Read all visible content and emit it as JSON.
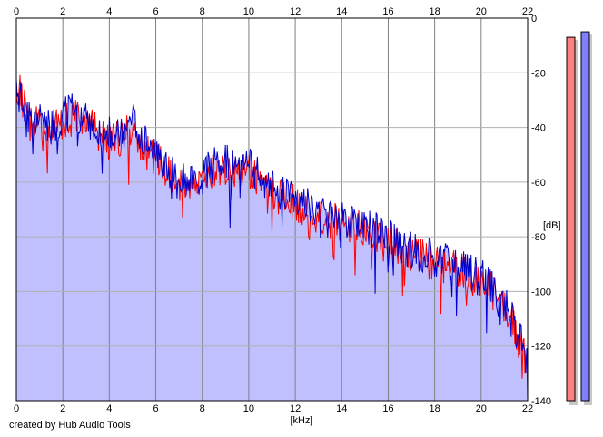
{
  "chart_data": {
    "type": "area",
    "xlabel": "[kHz]",
    "ylabel": "[dB]",
    "xlim": [
      0,
      22
    ],
    "ylim": [
      -140,
      0
    ],
    "x_ticks": [
      0,
      2,
      4,
      6,
      8,
      10,
      12,
      14,
      16,
      18,
      20,
      22
    ],
    "y_ticks": [
      0,
      -20,
      -40,
      -60,
      -80,
      -100,
      -120,
      -140
    ],
    "grid": true,
    "envelope_color": "#c0c0ff",
    "series": [
      {
        "color": "#ff0000",
        "x": [
          0,
          0.2,
          0.5,
          1,
          1.5,
          2,
          2.5,
          3,
          3.5,
          4,
          4.5,
          5,
          5.5,
          6,
          6.5,
          7,
          7.5,
          8,
          8.5,
          9,
          9.5,
          10,
          10.5,
          11,
          11.5,
          12,
          12.5,
          13,
          13.5,
          14,
          14.5,
          15,
          15.5,
          16,
          16.5,
          17,
          17.5,
          18,
          18.5,
          19,
          19.5,
          20,
          20.5,
          21,
          21.5,
          22
        ],
        "values": [
          -25,
          -28,
          -37,
          -40,
          -42,
          -38,
          -36,
          -38,
          -42,
          -45,
          -44,
          -40,
          -48,
          -52,
          -56,
          -62,
          -58,
          -60,
          -56,
          -54,
          -56,
          -55,
          -60,
          -64,
          -66,
          -68,
          -70,
          -72,
          -74,
          -75,
          -76,
          -78,
          -80,
          -80,
          -84,
          -86,
          -88,
          -90,
          -91,
          -92,
          -94,
          -96,
          -100,
          -105,
          -115,
          -126
        ]
      },
      {
        "color": "#0000cc",
        "x": [
          0,
          0.2,
          0.5,
          1,
          1.5,
          2,
          2.5,
          3,
          3.5,
          4,
          4.5,
          5,
          5.5,
          6,
          6.5,
          7,
          7.5,
          8,
          8.5,
          9,
          9.5,
          10,
          10.5,
          11,
          11.5,
          12,
          12.5,
          13,
          13.5,
          14,
          14.5,
          15,
          15.5,
          16,
          16.5,
          17,
          17.5,
          18,
          18.5,
          19,
          19.5,
          20,
          20.5,
          21,
          21.5,
          22
        ],
        "values": [
          -26,
          -30,
          -36,
          -38,
          -40,
          -36,
          -34,
          -37,
          -40,
          -42,
          -42,
          -38,
          -46,
          -50,
          -55,
          -60,
          -57,
          -58,
          -54,
          -52,
          -55,
          -50,
          -58,
          -62,
          -64,
          -66,
          -68,
          -70,
          -72,
          -73,
          -74,
          -76,
          -78,
          -80,
          -83,
          -85,
          -86,
          -88,
          -89,
          -90,
          -93,
          -95,
          -99,
          -104,
          -114,
          -124
        ]
      }
    ],
    "level_meters": [
      {
        "color": "#ff8080",
        "value": -7
      },
      {
        "color": "#8080ff",
        "value": -5
      }
    ]
  },
  "credit": "created by Hub Audio Tools"
}
